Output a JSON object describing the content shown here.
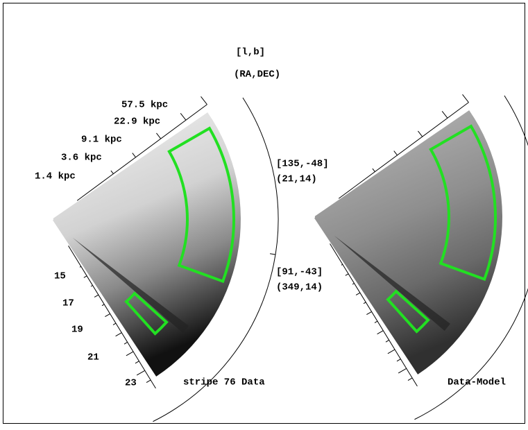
{
  "header": {
    "galactic": "[l,b]",
    "equatorial": "(RA,DEC)"
  },
  "distance_labels": [
    "57.5 kpc",
    "22.9 kpc",
    "9.1 kpc",
    "3.6 kpc",
    "1.4 kpc"
  ],
  "magnitude_labels": [
    "15",
    "17",
    "19",
    "21",
    "23"
  ],
  "edge_labels": [
    {
      "galactic": "[135,-48]",
      "equatorial": "(21,14)"
    },
    {
      "galactic": "[91,-43]",
      "equatorial": "(349,14)"
    }
  ],
  "panels": [
    {
      "caption": "stripe 76 Data"
    },
    {
      "caption": "Data-Model"
    }
  ]
}
